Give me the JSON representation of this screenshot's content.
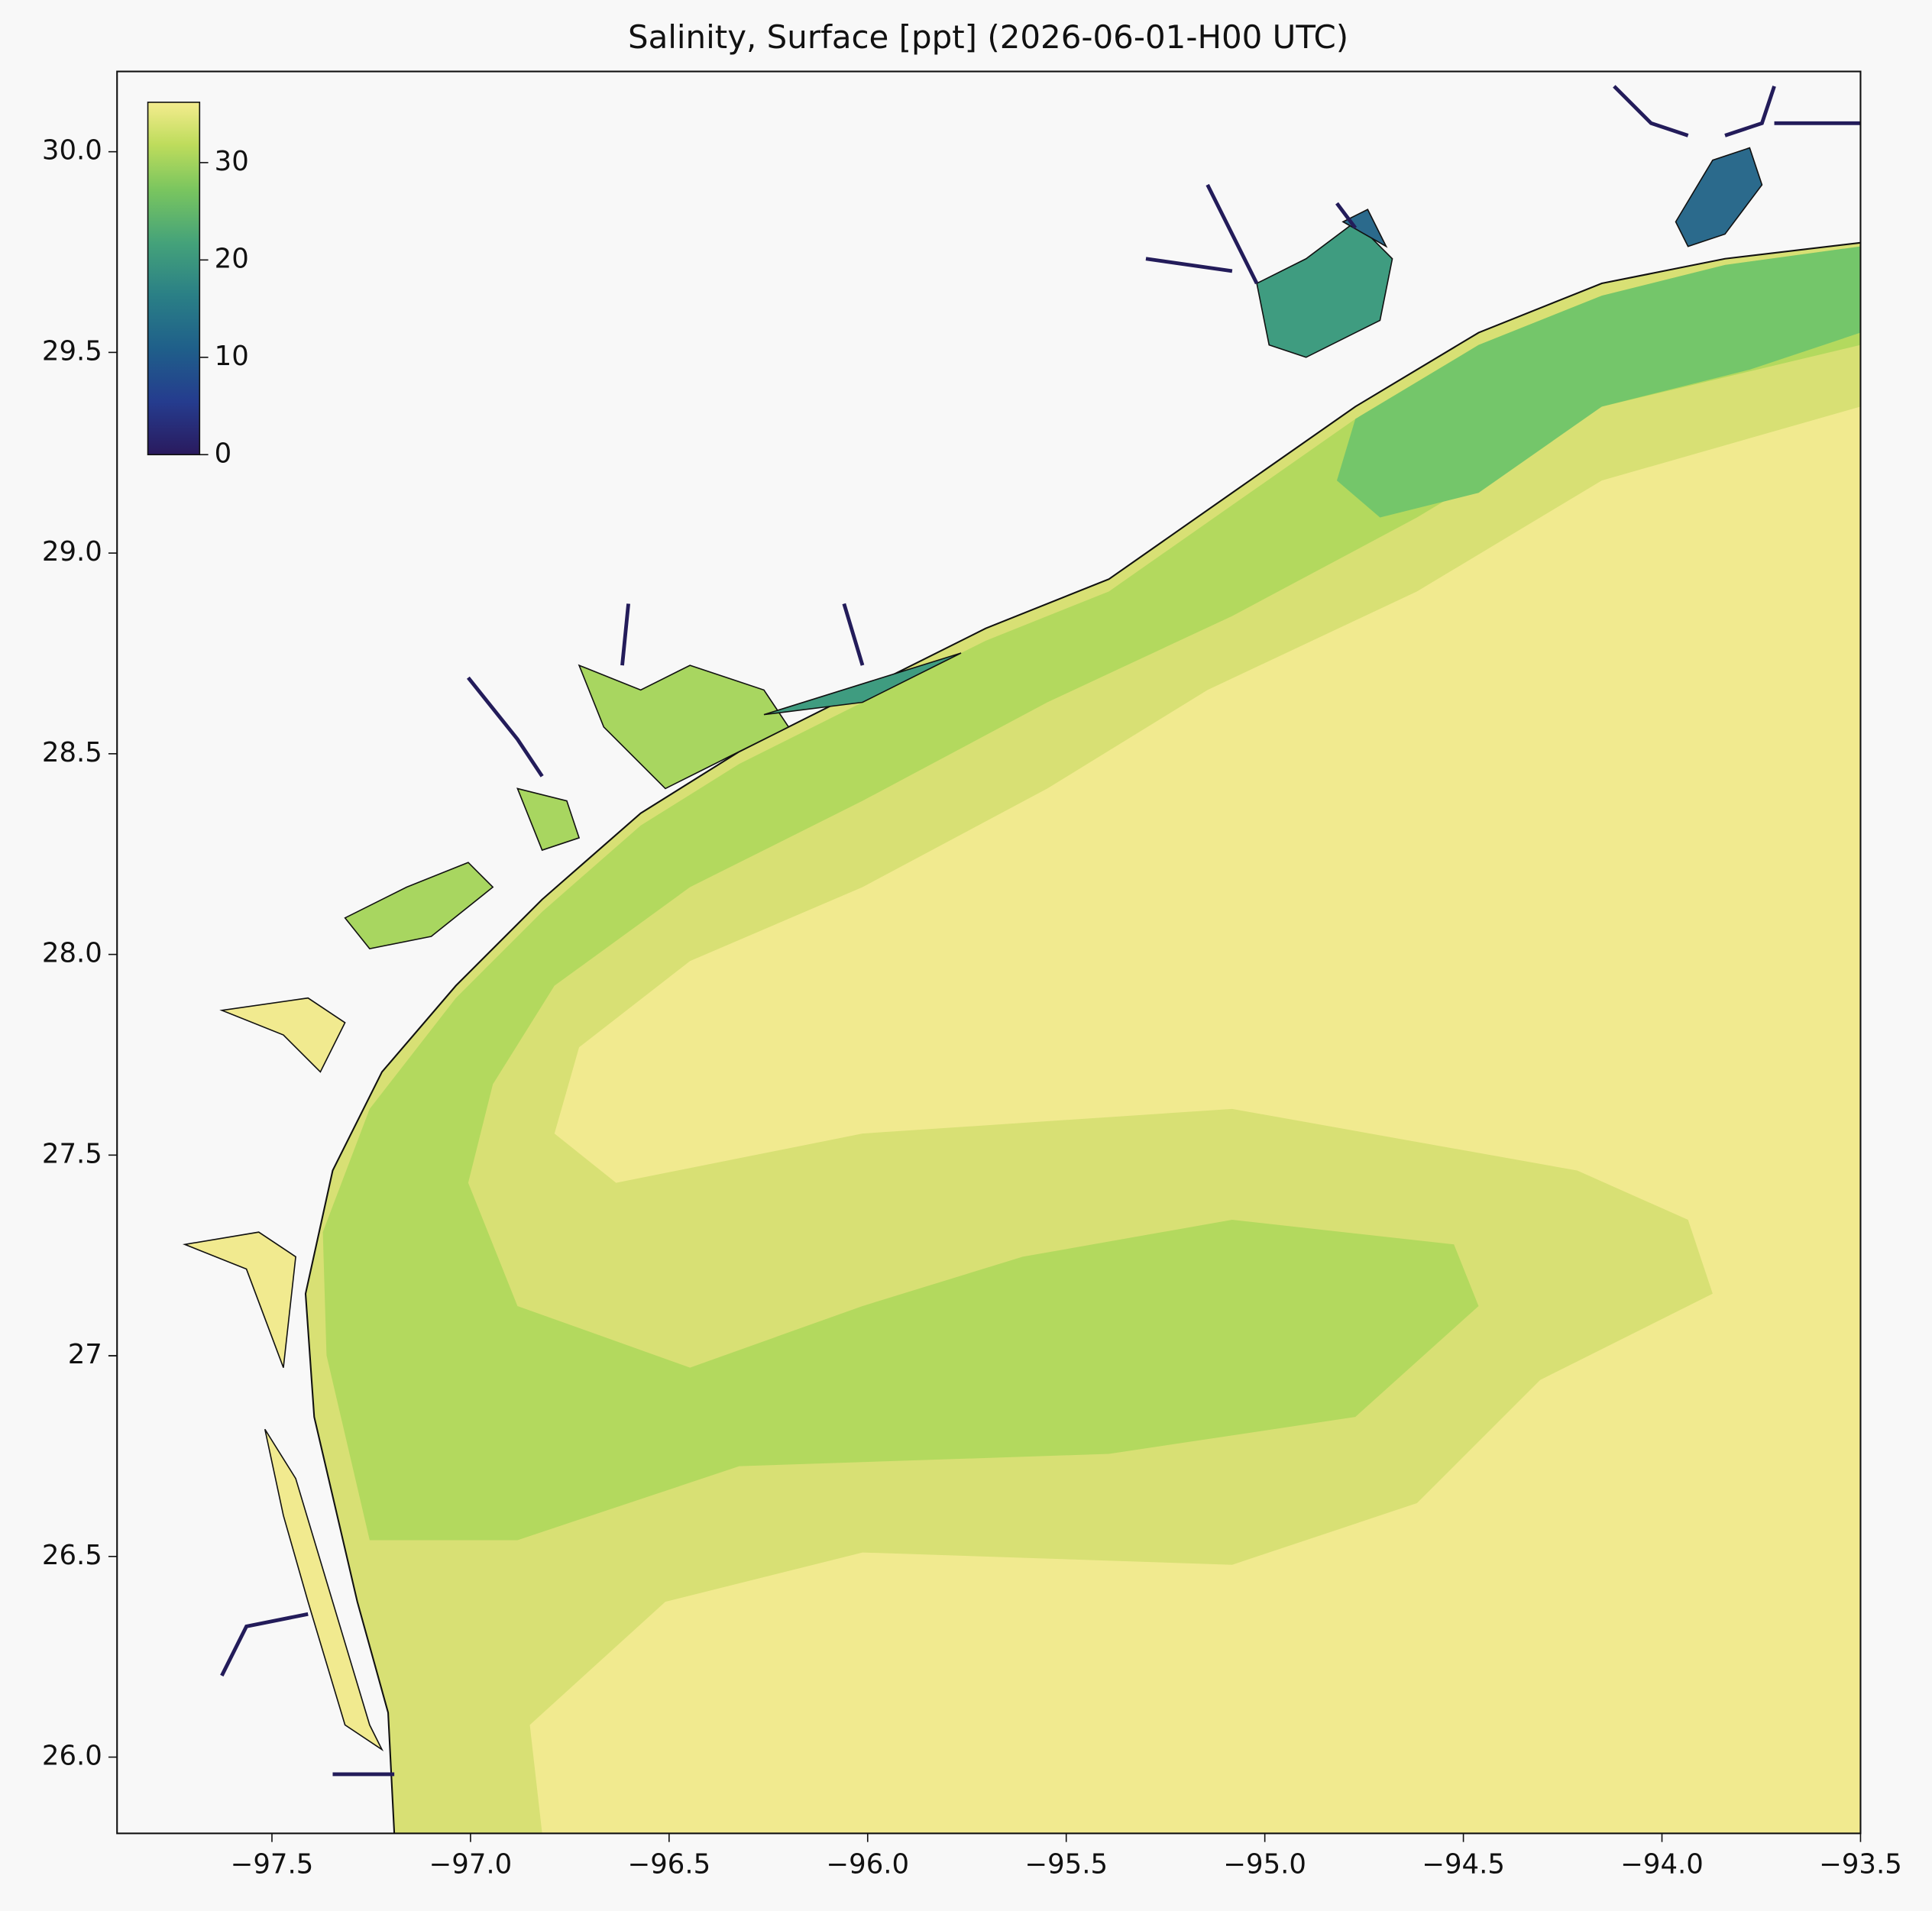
{
  "chart_data": {
    "type": "contour-map",
    "title": "Salinity, Surface [ppt] (2026-06-01-H00 UTC)",
    "xlim": [
      -97.89,
      -93.5
    ],
    "ylim": [
      25.81,
      30.2
    ],
    "xticks": [
      {
        "value": -97.5,
        "label": "−97.5"
      },
      {
        "value": -97.0,
        "label": "−97.0"
      },
      {
        "value": -96.5,
        "label": "−96.5"
      },
      {
        "value": -96.0,
        "label": "−96.0"
      },
      {
        "value": -95.5,
        "label": "−95.5"
      },
      {
        "value": -95.0,
        "label": "−95.0"
      },
      {
        "value": -94.5,
        "label": "−94.5"
      },
      {
        "value": -94.0,
        "label": "−94.0"
      },
      {
        "value": -93.5,
        "label": "−93.5"
      }
    ],
    "yticks": [
      {
        "value": 26.0,
        "label": "26.0"
      },
      26.5,
      27.0,
      {
        "value": 27.0,
        "label": "27.0"
      },
      27.5,
      {
        "value": 28.0,
        "label": "28.0"
      },
      28.5,
      {
        "value": 29.0,
        "label": "29.0"
      },
      29.5,
      {
        "value": 30.0,
        "label": "30.0"
      }
    ],
    "colorbar": {
      "clim": [
        0,
        36.2
      ],
      "ticks": [
        0,
        10,
        20,
        30
      ]
    }
  }
}
